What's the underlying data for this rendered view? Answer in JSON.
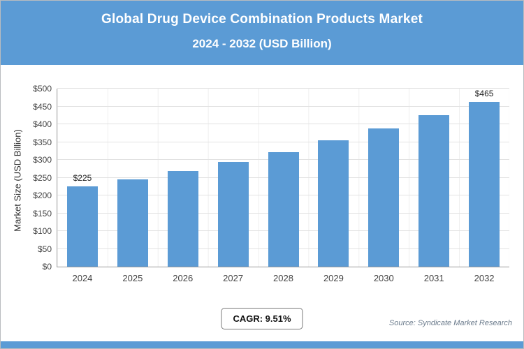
{
  "header": {
    "title_line1": "Global Drug Device Combination Products Market",
    "title_line2": "2024 - 2032 (USD Billion)"
  },
  "chart_data": {
    "type": "bar",
    "title": "Global Drug Device Combination Products Market 2024 - 2032 (USD Billion)",
    "categories": [
      "2024",
      "2025",
      "2026",
      "2027",
      "2028",
      "2029",
      "2030",
      "2031",
      "2032"
    ],
    "values": [
      225,
      246,
      269,
      295,
      322,
      354,
      388,
      425,
      465
    ],
    "bar_labels": {
      "2024": "$225",
      "2032": "$465"
    },
    "xlabel": "",
    "ylabel": "Market Size (USD Billion)",
    "ylim": [
      0,
      500
    ],
    "ytick_step": 50,
    "ytick_prefix": "$",
    "bar_color": "#5b9bd5",
    "grid": "horizontal",
    "legend": "none"
  },
  "footer": {
    "cagr_label": "CAGR: 9.51%",
    "source": "Source: Syndicate Market Research"
  },
  "colors": {
    "accent_blue": "#5b9bd5",
    "gridline": "#e2e2e2",
    "text_dark": "#222222",
    "source_gray": "#6b7b8c"
  }
}
